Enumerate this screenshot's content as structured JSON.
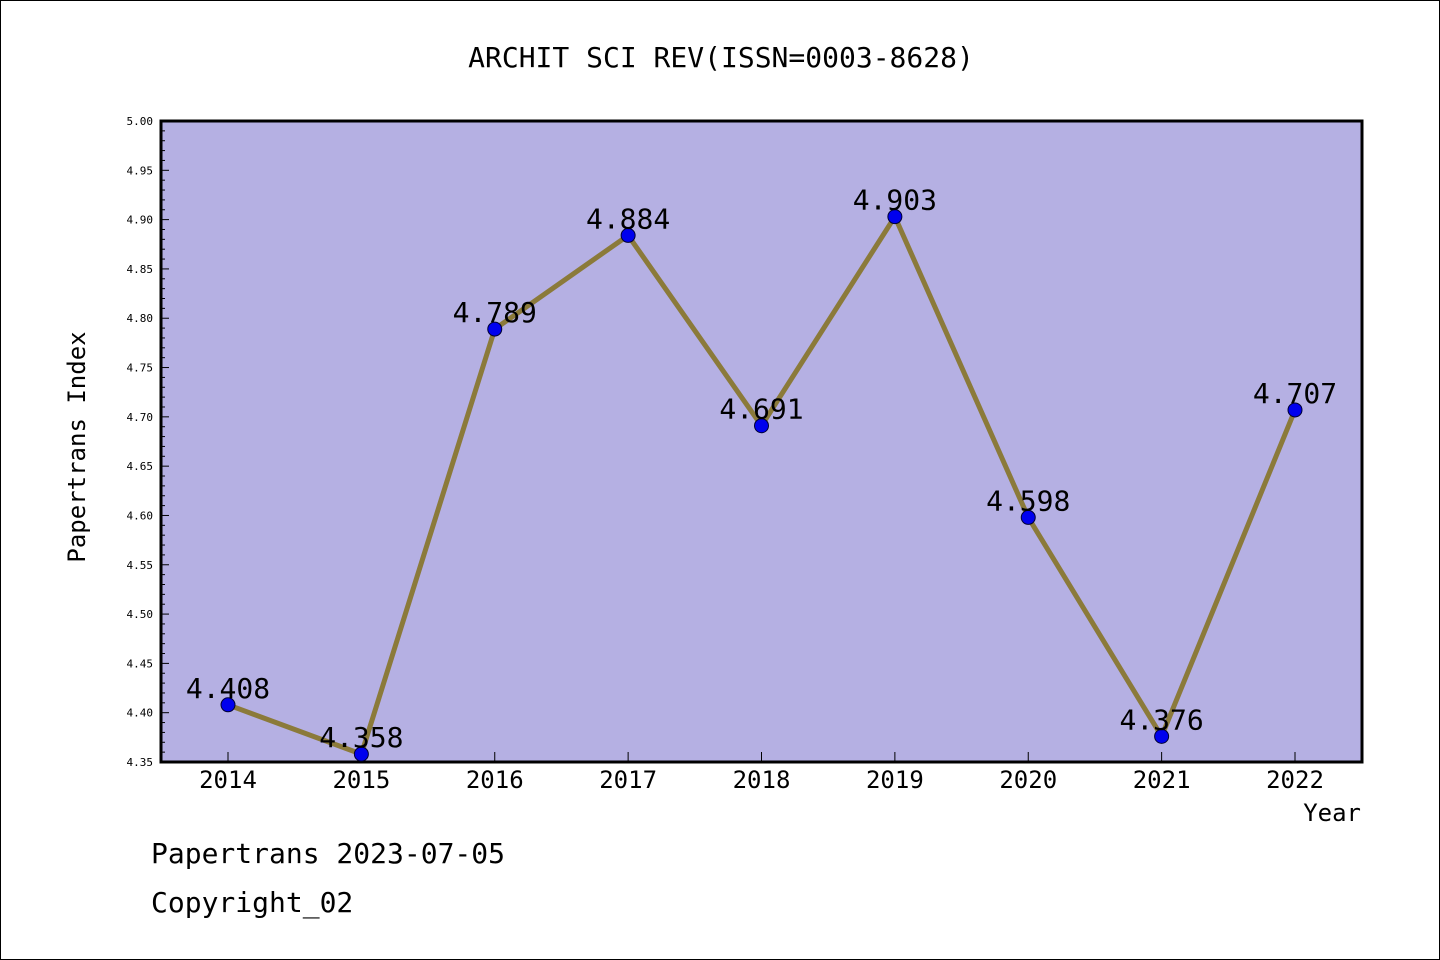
{
  "chart_data": {
    "type": "line",
    "title": "ARCHIT SCI REV(ISSN=0003-8628)",
    "xlabel": "Year",
    "ylabel": "Papertrans Index",
    "categories": [
      "2014",
      "2015",
      "2016",
      "2017",
      "2018",
      "2019",
      "2020",
      "2021",
      "2022"
    ],
    "values": [
      4.408,
      4.358,
      4.789,
      4.884,
      4.691,
      4.903,
      4.598,
      4.376,
      4.707
    ],
    "data_labels": [
      "4.408",
      "4.358",
      "4.789",
      "4.884",
      "4.691",
      "4.903",
      "4.598",
      "4.376",
      "4.707"
    ],
    "ylim": [
      4.35,
      5.0
    ],
    "yticks": [
      "4.35",
      "4.40",
      "4.45",
      "4.50",
      "4.55",
      "4.60",
      "4.65",
      "4.70",
      "4.75",
      "4.80",
      "4.85",
      "4.90",
      "4.95",
      "5.00"
    ],
    "grid": false,
    "colors": {
      "plot_background": "#b5b0e3",
      "line": "#8b7a3a",
      "marker": "#0000ee"
    }
  },
  "footer": {
    "source": "Papertrans 2023-07-05",
    "copyright": "Copyright_02"
  }
}
